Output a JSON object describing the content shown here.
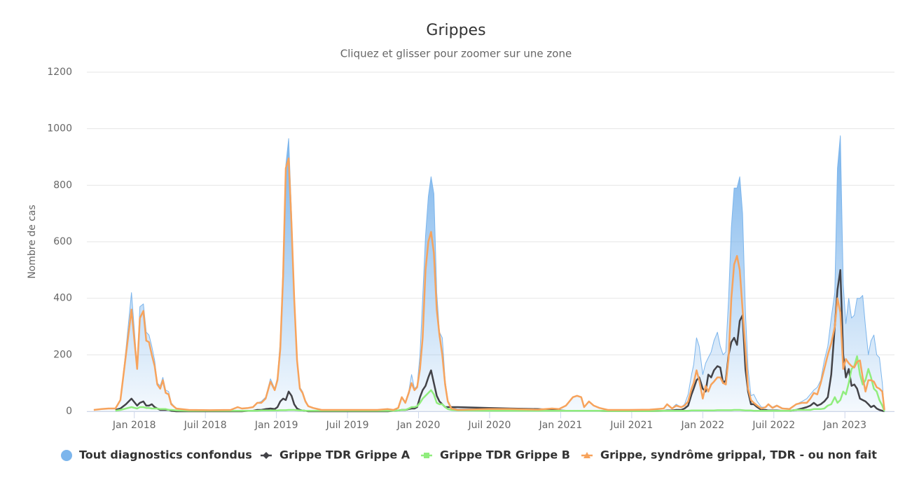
{
  "chart_data": {
    "type": "line",
    "title": "Grippes",
    "subtitle": "Cliquez et glisser pour zoomer sur une zone",
    "y_label": "Nombre de cas",
    "xlim": [
      2017.666,
      2023.349
    ],
    "xticks": [
      {
        "value": 2018,
        "label": "Jan 2018"
      },
      {
        "value": 2018.5,
        "label": "Juil 2018"
      },
      {
        "value": 2019,
        "label": "Jan 2019"
      },
      {
        "value": 2019.5,
        "label": "Juil 2019"
      },
      {
        "value": 2020,
        "label": "Jan 2020"
      },
      {
        "value": 2020.5,
        "label": "Juil 2020"
      },
      {
        "value": 2021,
        "label": "Jan 2021"
      },
      {
        "value": 2021.5,
        "label": "Juil 2021"
      },
      {
        "value": 2022,
        "label": "Jan 2022"
      },
      {
        "value": 2022.5,
        "label": "Juil 2022"
      },
      {
        "value": 2023,
        "label": "Jan 2023"
      }
    ],
    "ylim": [
      0,
      1200
    ],
    "yticks": [
      0,
      200,
      400,
      600,
      800,
      1000,
      1200
    ],
    "grid": true,
    "legend": "bottom",
    "x": [
      2017.715,
      2017.769,
      2017.818,
      2017.867,
      2017.902,
      2017.941,
      2017.98,
      2018.02,
      2018.039,
      2018.064,
      2018.084,
      2018.103,
      2018.123,
      2018.143,
      2018.162,
      2018.182,
      2018.201,
      2018.221,
      2018.241,
      2018.26,
      2018.295,
      2018.383,
      2018.531,
      2018.678,
      2018.727,
      2018.757,
      2018.801,
      2018.835,
      2018.865,
      2018.894,
      2018.924,
      2018.958,
      2018.988,
      2019.007,
      2019.027,
      2019.047,
      2019.066,
      2019.086,
      2019.106,
      2019.125,
      2019.145,
      2019.165,
      2019.184,
      2019.204,
      2019.224,
      2019.258,
      2019.317,
      2019.514,
      2019.71,
      2019.784,
      2019.823,
      2019.857,
      2019.882,
      2019.907,
      2019.931,
      2019.951,
      2019.971,
      2019.99,
      2020.01,
      2020.029,
      2020.049,
      2020.069,
      2020.088,
      2020.108,
      2020.128,
      2020.147,
      2020.167,
      2020.187,
      2020.206,
      2020.231,
      2020.275,
      2020.496,
      2020.644,
      2020.84,
      2020.939,
      2020.988,
      2021.037,
      2021.086,
      2021.115,
      2021.145,
      2021.165,
      2021.199,
      2021.233,
      2021.273,
      2021.332,
      2021.479,
      2021.627,
      2021.725,
      2021.749,
      2021.784,
      2021.813,
      2021.848,
      2021.872,
      2021.897,
      2021.921,
      2021.936,
      2021.956,
      2021.975,
      2022.0,
      2022.02,
      2022.039,
      2022.059,
      2022.079,
      2022.103,
      2022.123,
      2022.143,
      2022.162,
      2022.182,
      2022.201,
      2022.221,
      2022.241,
      2022.26,
      2022.28,
      2022.3,
      2022.319,
      2022.339,
      2022.359,
      2022.383,
      2022.413,
      2022.442,
      2022.462,
      2022.491,
      2022.521,
      2022.56,
      2022.609,
      2022.658,
      2022.698,
      2022.732,
      2022.757,
      2022.781,
      2022.806,
      2022.83,
      2022.855,
      2022.88,
      2022.904,
      2022.929,
      2022.948,
      2022.968,
      2022.988,
      2023.007,
      2023.027,
      2023.047,
      2023.066,
      2023.086,
      2023.106,
      2023.125,
      2023.145,
      2023.165,
      2023.184,
      2023.204,
      2023.224,
      2023.243,
      2023.263,
      2023.278
    ],
    "series": [
      {
        "name": "Tout diagnostics confondus",
        "type": "area",
        "marker": "circle",
        "color": "#7cb5ec",
        "values": [
          5,
          8,
          10,
          10,
          40,
          220,
          420,
          160,
          370,
          380,
          280,
          270,
          230,
          180,
          100,
          90,
          120,
          75,
          70,
          30,
          10,
          5,
          4,
          5,
          15,
          10,
          12,
          15,
          30,
          35,
          50,
          115,
          80,
          120,
          250,
          520,
          870,
          965,
          700,
          420,
          190,
          85,
          70,
          40,
          20,
          12,
          5,
          5,
          5,
          8,
          5,
          12,
          50,
          35,
          70,
          130,
          80,
          90,
          200,
          400,
          620,
          760,
          830,
          770,
          420,
          280,
          260,
          110,
          40,
          15,
          8,
          10,
          10,
          8,
          10,
          8,
          20,
          50,
          55,
          50,
          15,
          35,
          20,
          12,
          5,
          5,
          6,
          10,
          25,
          12,
          25,
          15,
          25,
          60,
          130,
          165,
          260,
          230,
          130,
          170,
          190,
          210,
          250,
          280,
          230,
          200,
          210,
          400,
          650,
          790,
          790,
          830,
          700,
          350,
          150,
          55,
          60,
          35,
          15,
          15,
          25,
          15,
          22,
          12,
          10,
          25,
          35,
          45,
          60,
          75,
          85,
          110,
          180,
          230,
          330,
          420,
          860,
          975,
          450,
          310,
          400,
          330,
          340,
          400,
          400,
          410,
          300,
          200,
          250,
          270,
          200,
          190,
          100,
          0
        ]
      },
      {
        "name": "Grippe TDR Grippe A",
        "type": "line",
        "marker": "diamond",
        "color": "#434348",
        "values": [
          null,
          null,
          null,
          5,
          10,
          25,
          45,
          20,
          30,
          35,
          20,
          20,
          25,
          15,
          10,
          5,
          5,
          5,
          5,
          2,
          0,
          0,
          0,
          0,
          0,
          0,
          2,
          2,
          5,
          5,
          8,
          10,
          8,
          15,
          35,
          45,
          40,
          70,
          55,
          25,
          10,
          5,
          3,
          2,
          0,
          0,
          0,
          0,
          0,
          0,
          2,
          3,
          5,
          5,
          8,
          10,
          10,
          15,
          50,
          75,
          90,
          120,
          145,
          100,
          55,
          35,
          25,
          15,
          15,
          15,
          15,
          12,
          10,
          8,
          5,
          3,
          2,
          2,
          2,
          2,
          2,
          2,
          2,
          2,
          1,
          1,
          1,
          2,
          3,
          3,
          5,
          5,
          10,
          20,
          60,
          80,
          110,
          120,
          80,
          70,
          130,
          120,
          145,
          160,
          155,
          100,
          110,
          200,
          245,
          260,
          235,
          320,
          340,
          150,
          70,
          25,
          25,
          15,
          5,
          5,
          3,
          3,
          3,
          2,
          2,
          5,
          10,
          15,
          20,
          30,
          20,
          25,
          35,
          50,
          130,
          300,
          430,
          500,
          200,
          120,
          150,
          90,
          95,
          80,
          45,
          40,
          35,
          25,
          15,
          20,
          10,
          5,
          2,
          0
        ]
      },
      {
        "name": "Grippe TDR Grippe B",
        "type": "line",
        "marker": "square",
        "color": "#90ed7d",
        "values": [
          null,
          null,
          null,
          2,
          5,
          10,
          15,
          10,
          15,
          15,
          12,
          12,
          10,
          10,
          10,
          8,
          8,
          8,
          5,
          5,
          3,
          2,
          2,
          2,
          2,
          2,
          2,
          2,
          2,
          3,
          3,
          3,
          3,
          3,
          4,
          4,
          4,
          5,
          5,
          5,
          4,
          3,
          3,
          2,
          2,
          2,
          2,
          2,
          2,
          2,
          2,
          3,
          5,
          5,
          10,
          15,
          15,
          18,
          30,
          45,
          55,
          65,
          75,
          60,
          30,
          25,
          25,
          15,
          8,
          5,
          3,
          2,
          2,
          2,
          2,
          2,
          2,
          2,
          2,
          2,
          2,
          2,
          2,
          2,
          1,
          1,
          1,
          2,
          2,
          2,
          2,
          2,
          2,
          2,
          3,
          3,
          3,
          3,
          3,
          3,
          3,
          3,
          3,
          4,
          4,
          4,
          4,
          4,
          4,
          5,
          5,
          5,
          4,
          3,
          3,
          3,
          2,
          2,
          2,
          2,
          2,
          2,
          2,
          2,
          2,
          5,
          5,
          5,
          5,
          8,
          8,
          8,
          10,
          20,
          25,
          50,
          30,
          40,
          70,
          60,
          100,
          150,
          160,
          195,
          130,
          95,
          110,
          150,
          120,
          80,
          70,
          40,
          20,
          0
        ]
      },
      {
        "name": "Grippe, syndrôme grippal, TDR - ou non fait",
        "type": "line",
        "marker": "triangle",
        "color": "#f7a35c",
        "values": [
          5,
          8,
          10,
          10,
          40,
          200,
          360,
          150,
          330,
          355,
          250,
          245,
          200,
          160,
          95,
          80,
          110,
          65,
          60,
          25,
          10,
          5,
          4,
          5,
          15,
          10,
          12,
          15,
          30,
          30,
          45,
          105,
          75,
          110,
          220,
          480,
          860,
          895,
          660,
          400,
          180,
          80,
          65,
          35,
          18,
          12,
          5,
          5,
          5,
          8,
          5,
          12,
          50,
          30,
          65,
          100,
          75,
          85,
          150,
          260,
          500,
          600,
          635,
          560,
          360,
          270,
          200,
          95,
          35,
          10,
          5,
          8,
          8,
          6,
          10,
          8,
          20,
          50,
          55,
          50,
          15,
          35,
          20,
          12,
          5,
          5,
          6,
          10,
          25,
          10,
          20,
          15,
          20,
          35,
          80,
          100,
          145,
          110,
          45,
          90,
          70,
          95,
          105,
          120,
          120,
          100,
          95,
          190,
          400,
          520,
          550,
          500,
          360,
          220,
          80,
          40,
          30,
          20,
          10,
          15,
          25,
          12,
          20,
          10,
          8,
          25,
          30,
          30,
          45,
          65,
          60,
          100,
          150,
          200,
          240,
          300,
          400,
          350,
          150,
          185,
          170,
          160,
          155,
          175,
          180,
          120,
          70,
          110,
          110,
          105,
          85,
          80,
          70,
          5
        ]
      }
    ]
  }
}
